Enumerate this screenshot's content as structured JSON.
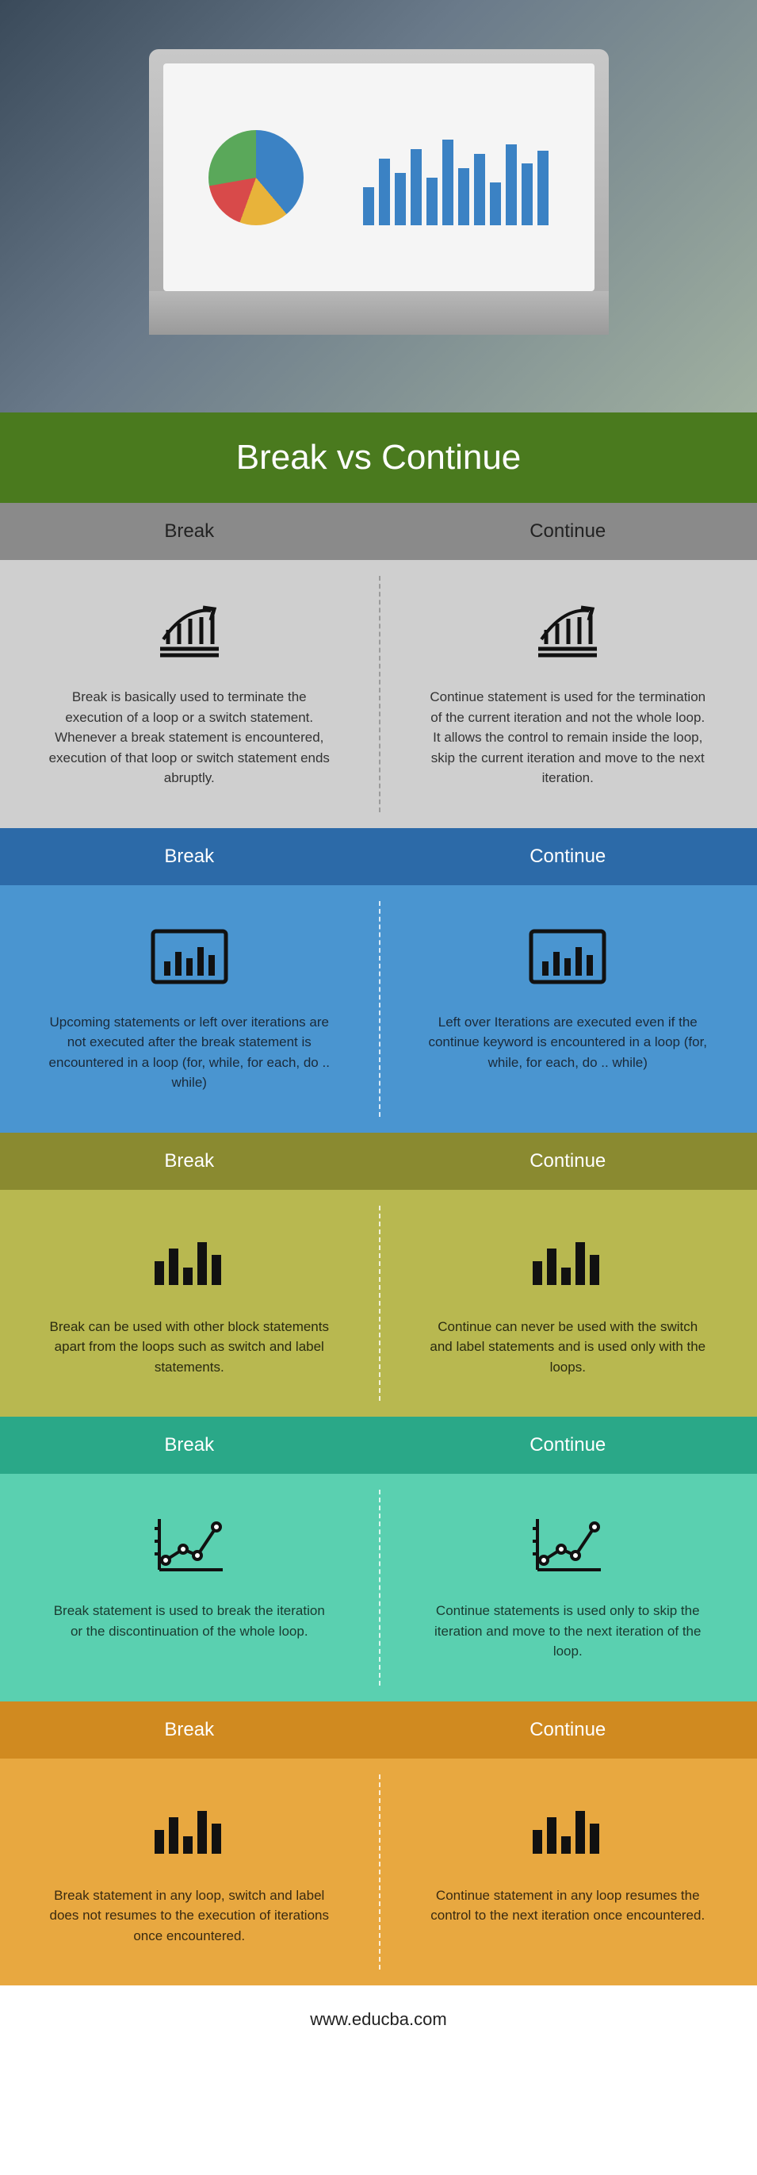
{
  "title": "Break vs Continue",
  "footer_url": "www.educba.com",
  "columns": {
    "left_label": "Break",
    "right_label": "Continue"
  },
  "sections": [
    {
      "header_class": "hdr-gray",
      "body_class": "body-gray",
      "divider": "dark-divider",
      "icon": "growth",
      "left": "Break is basically used to terminate the execution of a loop or a switch statement. Whenever a break statement is encountered, execution of that loop or switch statement ends abruptly.",
      "right": "Continue statement is used for the termination of the current iteration and not the whole loop. It allows the control to remain inside the loop, skip the current iteration and move to the next iteration."
    },
    {
      "header_class": "hdr-blue",
      "body_class": "body-blue",
      "divider": "",
      "icon": "barbox",
      "left": "Upcoming statements or left over iterations are not executed after the break statement is encountered in a loop (for, while, for each, do .. while)",
      "right": "Left over Iterations are executed even if the continue keyword is encountered in a loop (for, while, for each, do .. while)"
    },
    {
      "header_class": "hdr-olive",
      "body_class": "body-olive",
      "divider": "",
      "icon": "bars",
      "left": "Break can be used with other block statements apart from the loops such as switch and label statements.",
      "right": "Continue can never be used with the switch and label statements and is used only with the loops."
    },
    {
      "header_class": "hdr-teal",
      "body_class": "body-teal",
      "divider": "",
      "icon": "linechart",
      "left": "Break statement is used to break the iteration or the discontinuation of the whole loop.",
      "right": "Continue statements is used only to skip the iteration and move to the next iteration of the loop."
    },
    {
      "header_class": "hdr-orange",
      "body_class": "body-orange",
      "divider": "",
      "icon": "bars",
      "left": "Break statement in any loop, switch and label does not resumes to the execution of iterations once encountered.",
      "right": "Continue statement in any loop resumes the control to the next iteration once encountered."
    }
  ],
  "icons_color": "#111111"
}
